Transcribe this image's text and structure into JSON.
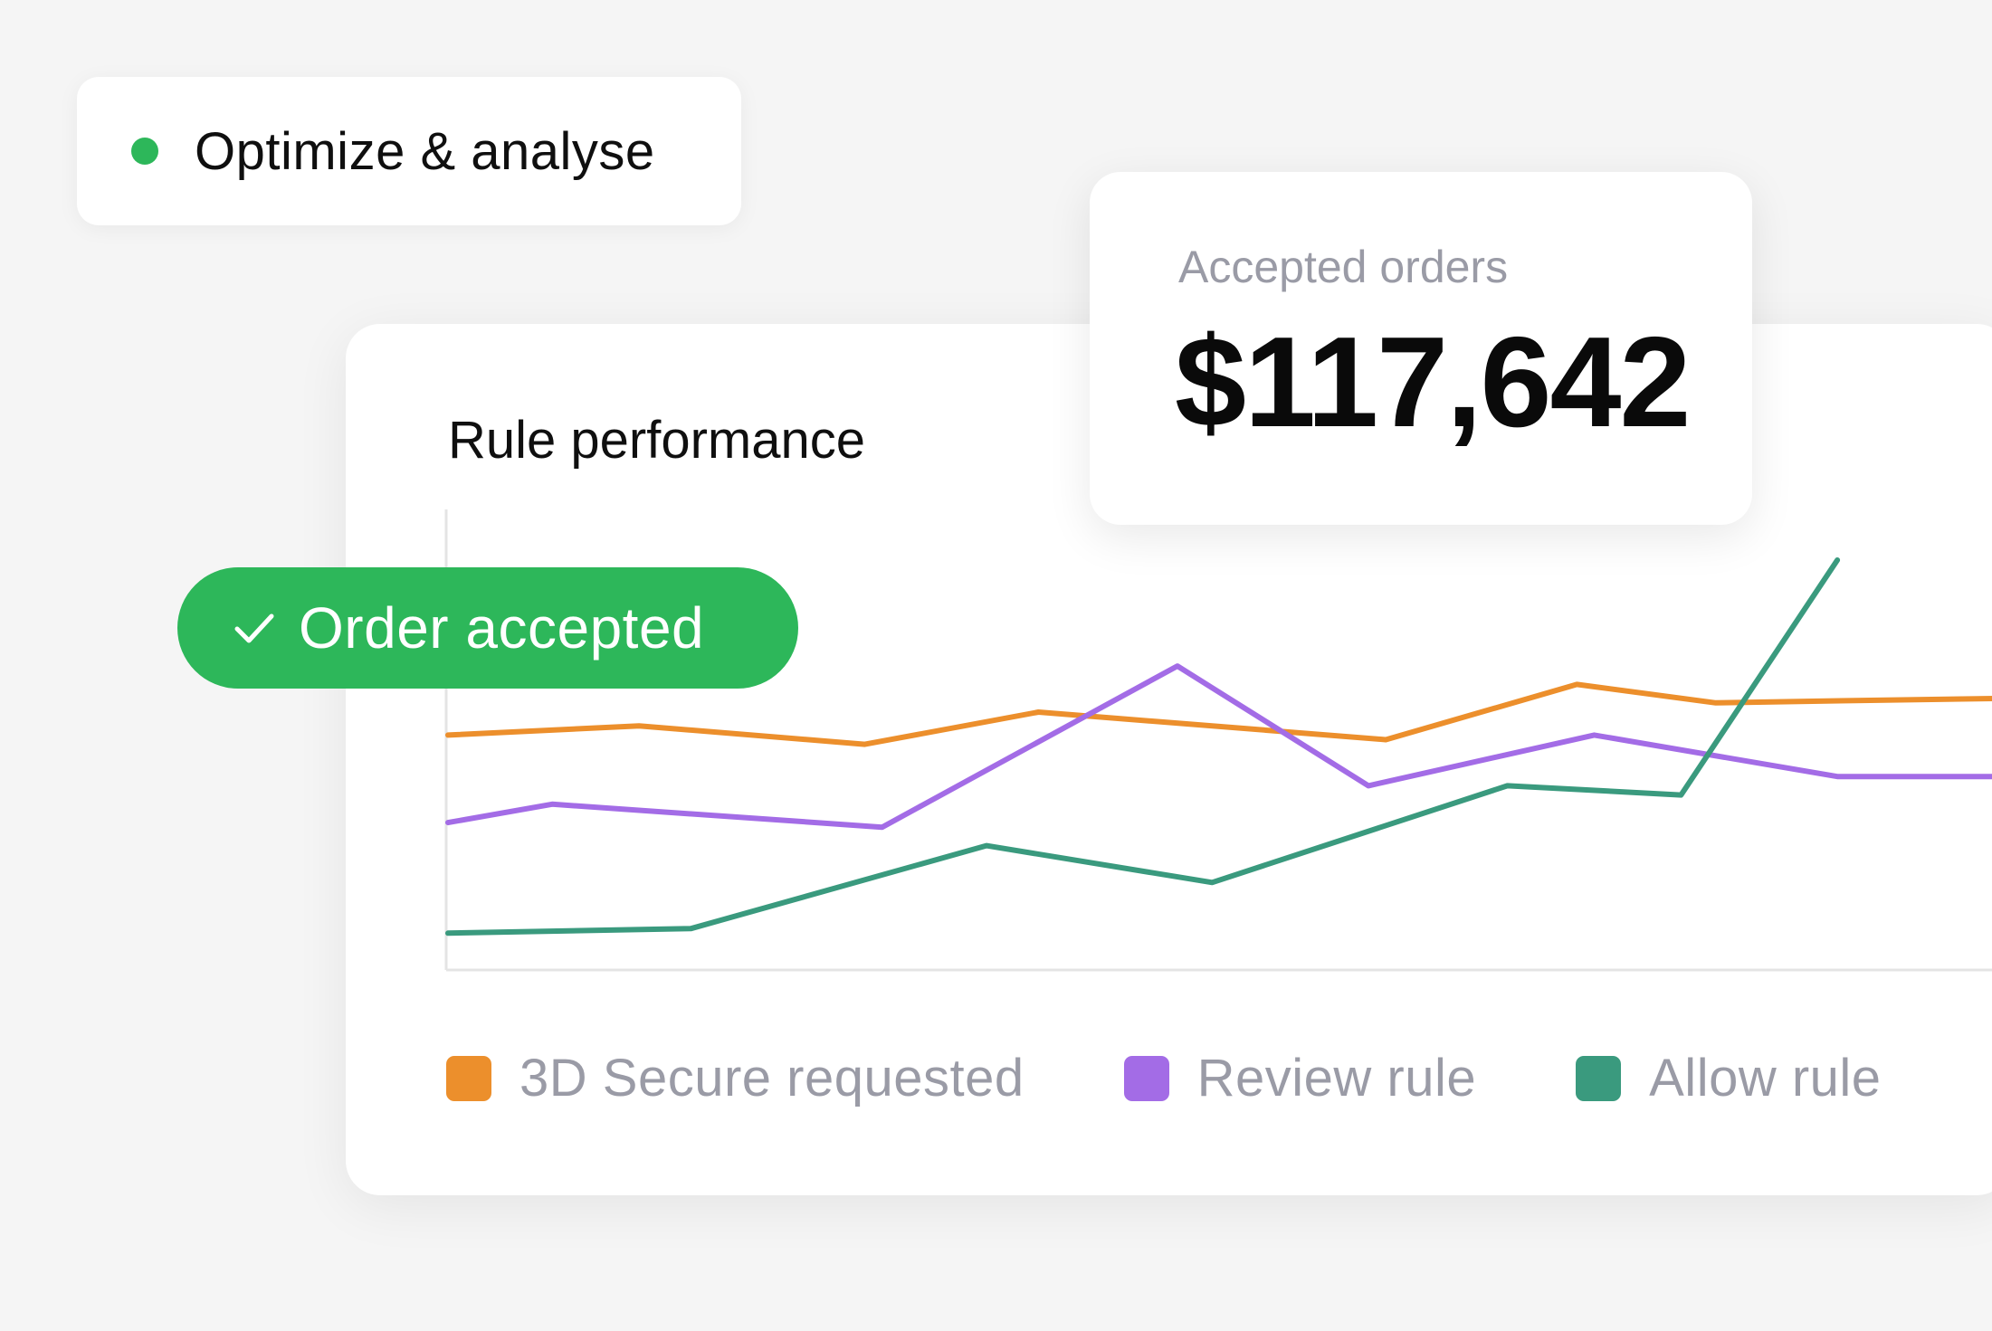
{
  "badge": {
    "label": "Optimize & analyse",
    "dot_color": "#2db75a"
  },
  "panel": {
    "title": "Rule performance"
  },
  "stat": {
    "label": "Accepted orders",
    "value": "$117,642"
  },
  "toast": {
    "label": "Order accepted",
    "icon": "check-icon",
    "color": "#2db75a"
  },
  "legend": [
    {
      "label": "3D Secure requested",
      "color": "#ec8f2c"
    },
    {
      "label": "Review rule",
      "color": "#a36ce6"
    },
    {
      "label": "Allow rule",
      "color": "#3a9a7e"
    }
  ],
  "chart_data": {
    "type": "line",
    "title": "Rule performance",
    "x": [
      0,
      1,
      2,
      3,
      4,
      5,
      6,
      7,
      8,
      9
    ],
    "ylim": [
      0,
      100
    ],
    "grid": false,
    "legend_position": "bottom-left",
    "series": [
      {
        "name": "3D Secure requested",
        "color": "#ec8f2c",
        "points": [
          [
            0,
            51
          ],
          [
            1.1,
            53
          ],
          [
            2.4,
            49
          ],
          [
            3.4,
            56
          ],
          [
            5.4,
            50
          ],
          [
            6.5,
            62
          ],
          [
            7.3,
            58
          ],
          [
            8.1,
            58.5
          ],
          [
            9.0,
            59
          ]
        ]
      },
      {
        "name": "Review rule",
        "color": "#a36ce6",
        "points": [
          [
            0,
            32
          ],
          [
            0.6,
            36
          ],
          [
            2.5,
            31
          ],
          [
            4.2,
            66
          ],
          [
            5.3,
            40
          ],
          [
            6.6,
            51
          ],
          [
            8.0,
            42
          ],
          [
            9.0,
            42
          ]
        ]
      },
      {
        "name": "Allow rule",
        "color": "#3a9a7e",
        "points": [
          [
            0,
            8
          ],
          [
            1.4,
            9
          ],
          [
            3.1,
            27
          ],
          [
            4.4,
            19
          ],
          [
            6.1,
            40
          ],
          [
            7.1,
            38
          ],
          [
            8.0,
            89
          ]
        ]
      }
    ]
  }
}
